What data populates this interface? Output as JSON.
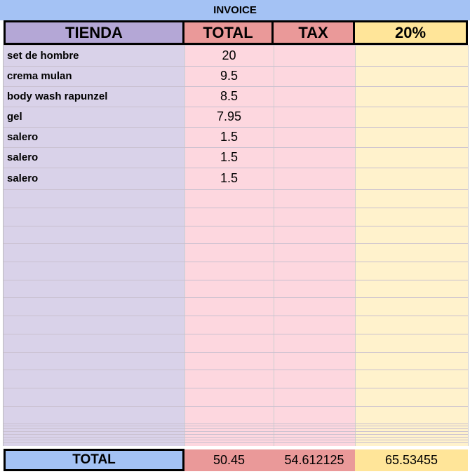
{
  "title": "INVOICE",
  "header": [
    "TIENDA",
    "TOTAL",
    "TAX",
    "20%"
  ],
  "rows": [
    [
      "set de hombre",
      20
    ],
    [
      "crema mulan",
      9.5
    ],
    [
      "body wash rapunzel",
      8.5
    ],
    [
      "gel",
      7.95
    ],
    [
      "salero",
      1.5
    ],
    [
      "salero",
      1.5
    ],
    [
      "salero",
      1.5
    ]
  ],
  "footer": {
    "label": "TOTAL",
    "total": 50.45,
    "tax": 54.612125,
    "pct": 65.53455
  }
}
